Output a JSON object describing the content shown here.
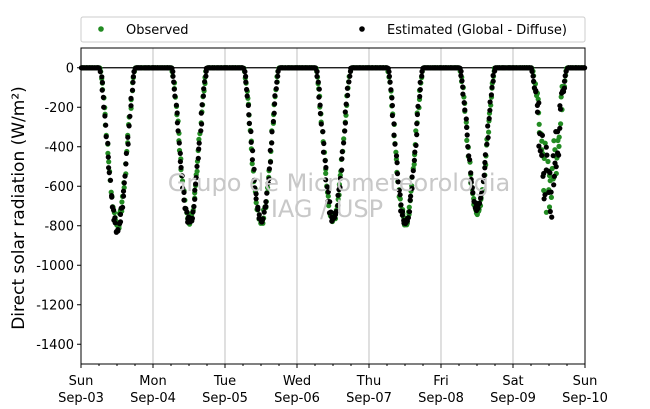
{
  "chart_data": {
    "type": "scatter",
    "ylabel": "Direct solar radiation (W/m²)",
    "ylim": [
      -1500,
      100
    ],
    "yticks": [
      0,
      -200,
      -400,
      -600,
      -800,
      -1000,
      -1200,
      -1400
    ],
    "xlim": [
      "2019-09-03",
      "2019-09-10"
    ],
    "x_tick_labels": [
      {
        "day": "Sun",
        "date": "Sep-03"
      },
      {
        "day": "Mon",
        "date": "Sep-04"
      },
      {
        "day": "Tue",
        "date": "Sep-05"
      },
      {
        "day": "Wed",
        "date": "Sep-06"
      },
      {
        "day": "Thu",
        "date": "Sep-07"
      },
      {
        "day": "Fri",
        "date": "Sep-08"
      },
      {
        "day": "Sat",
        "date": "Sep-09"
      },
      {
        "day": "Sun",
        "date": "Sep-10"
      }
    ],
    "grid": "vertical at day boundaries",
    "legend_placement": "top, above plot",
    "reference_line_y": 0,
    "watermark": [
      "Grupo de Micrometeorologia",
      "IAG / USP"
    ],
    "series": [
      {
        "name": "Observed",
        "color": "#228b22",
        "daily_minimum": [
          {
            "day": "Sep-03",
            "value": -790
          },
          {
            "day": "Sep-04",
            "value": -760
          },
          {
            "day": "Sep-05",
            "value": -770
          },
          {
            "day": "Sep-06",
            "value": -760
          },
          {
            "day": "Sep-07",
            "value": -780
          },
          {
            "day": "Sep-08",
            "value": -730
          },
          {
            "day": "Sep-09",
            "value": -700
          }
        ]
      },
      {
        "name": "Estimated (Global - Diffuse)",
        "color": "#000000",
        "daily_minimum": [
          {
            "day": "Sep-03",
            "value": -815
          },
          {
            "day": "Sep-04",
            "value": -775
          },
          {
            "day": "Sep-05",
            "value": -775
          },
          {
            "day": "Sep-06",
            "value": -770
          },
          {
            "day": "Sep-07",
            "value": -795
          },
          {
            "day": "Sep-08",
            "value": -720
          },
          {
            "day": "Sep-09",
            "value": -750
          }
        ]
      }
    ]
  }
}
